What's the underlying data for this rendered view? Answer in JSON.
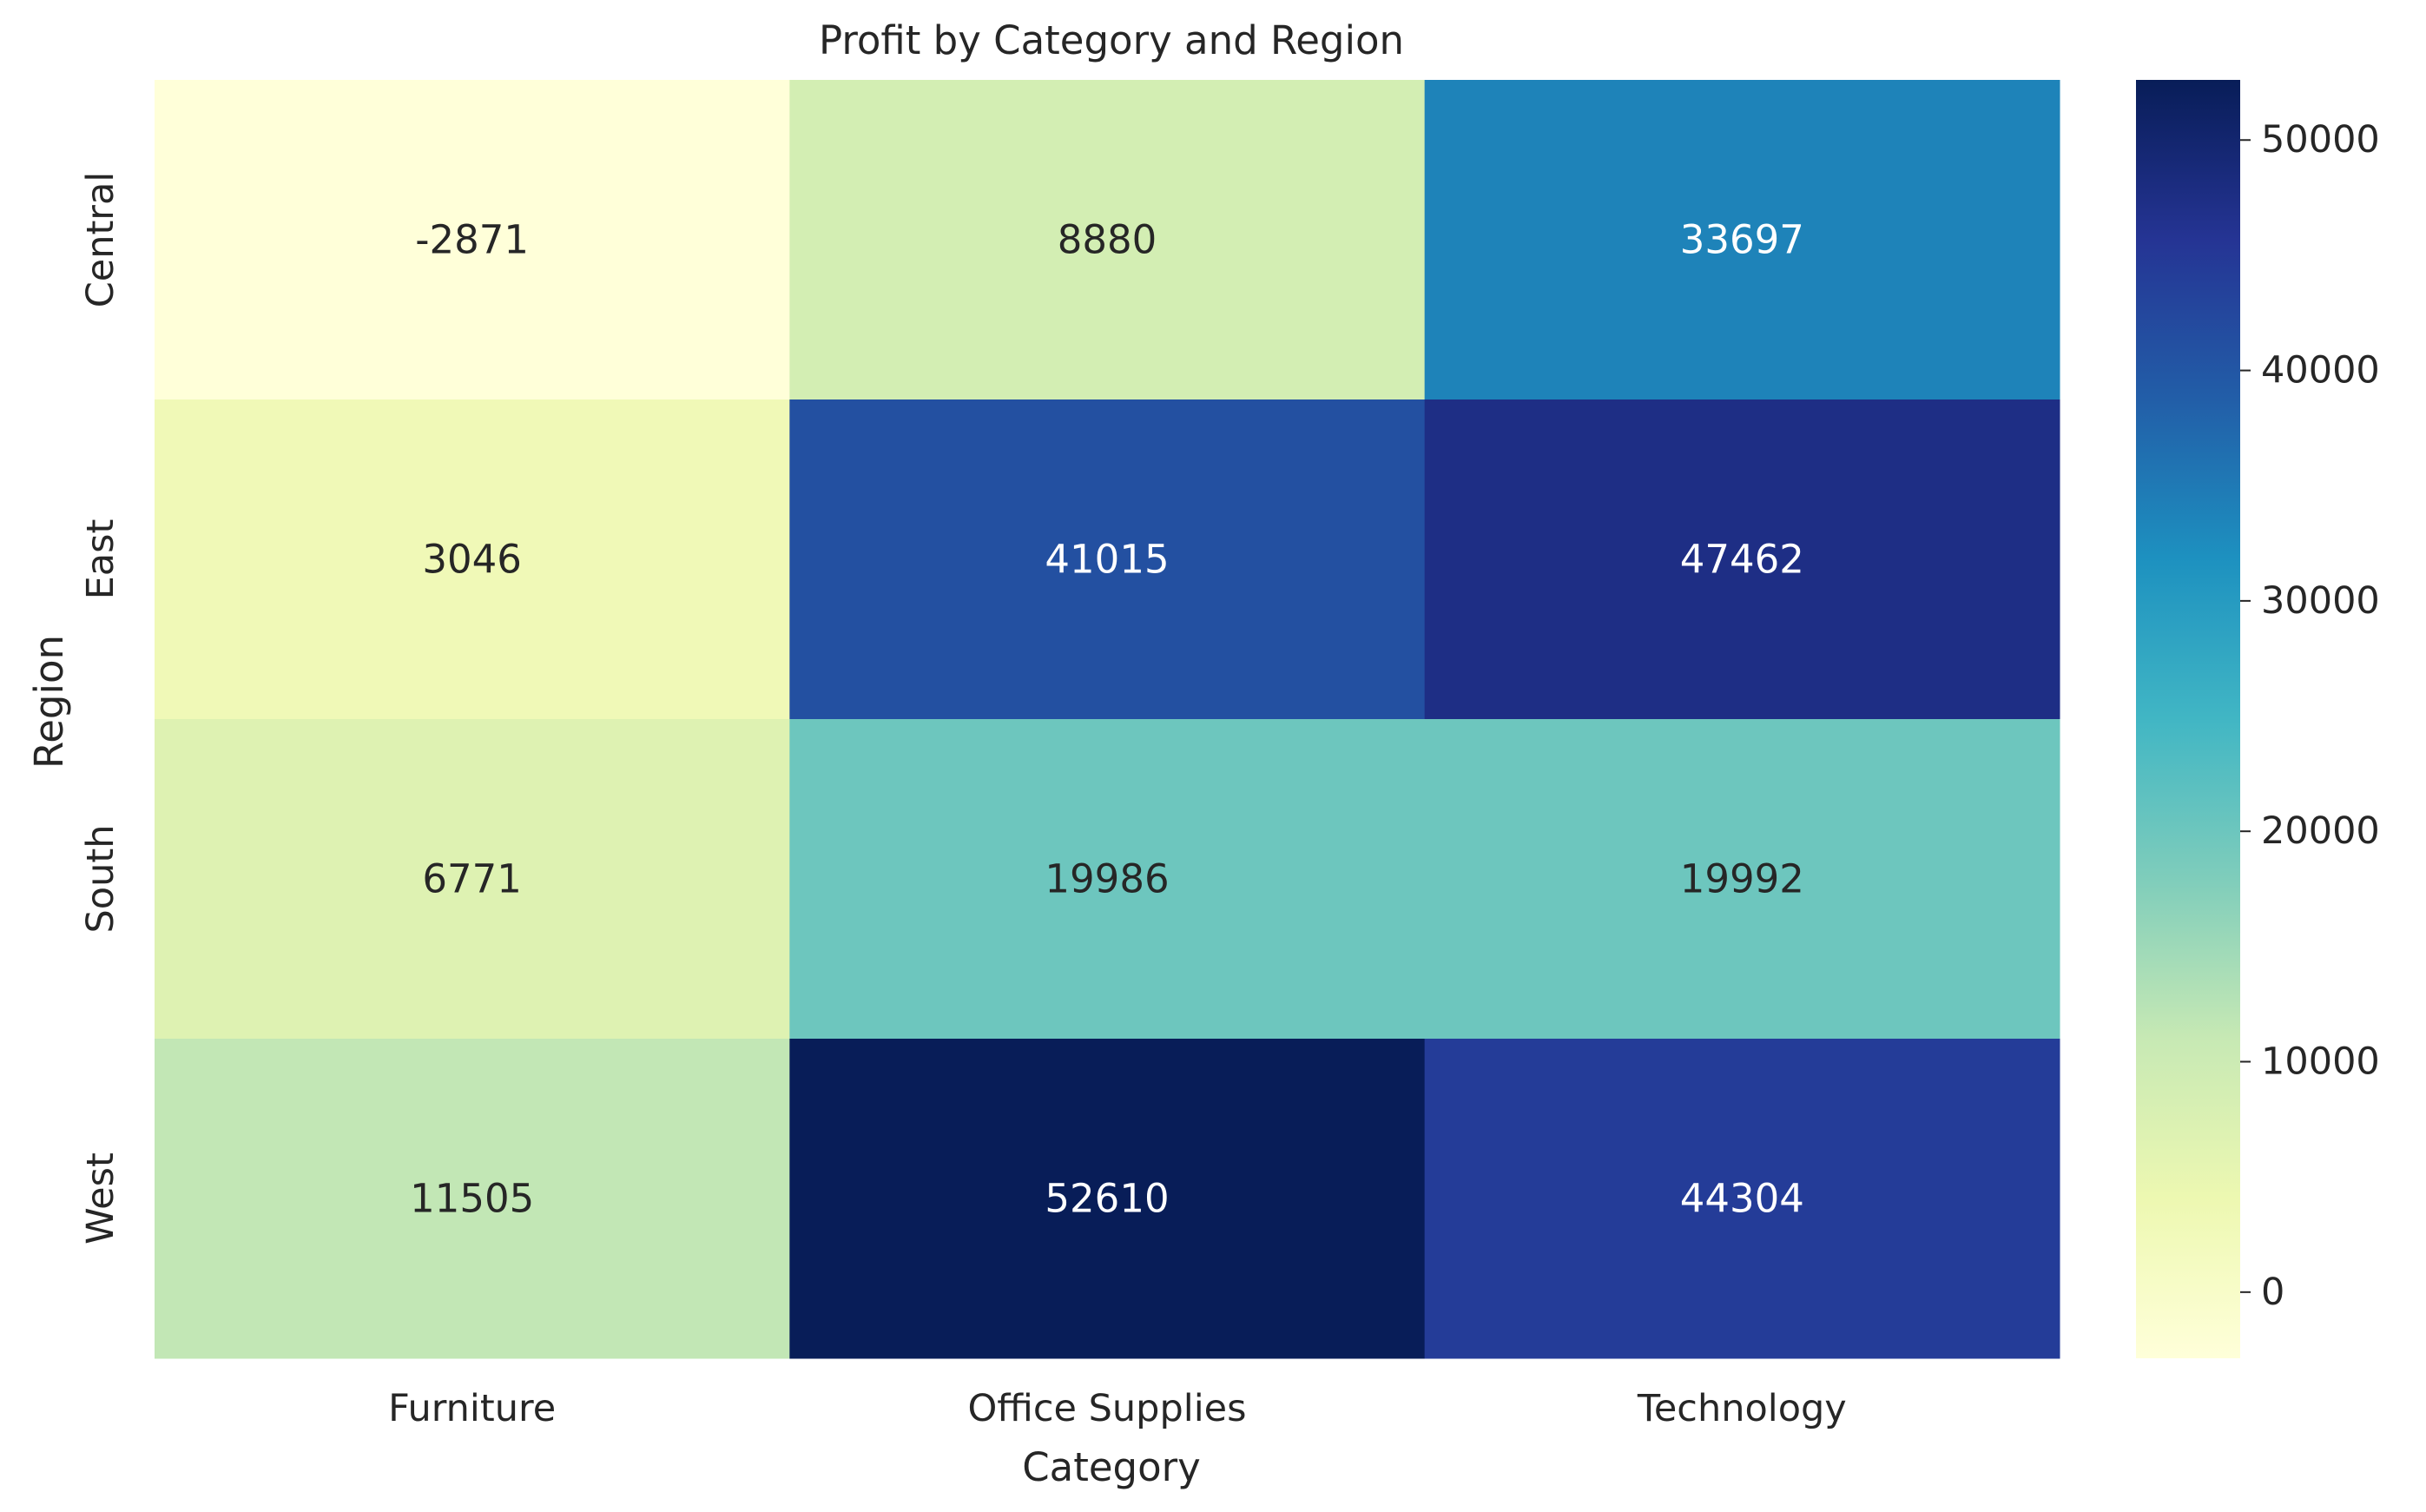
{
  "chart_data": {
    "type": "heatmap",
    "title": "Profit by Category and Region",
    "xlabel": "Category",
    "ylabel": "Region",
    "x_categories": [
      "Furniture",
      "Office Supplies",
      "Technology"
    ],
    "y_categories": [
      "Central",
      "East",
      "South",
      "West"
    ],
    "values": [
      [
        -2871,
        8880,
        33697
      ],
      [
        3046,
        41015,
        47462
      ],
      [
        6771,
        19986,
        19992
      ],
      [
        11505,
        52610,
        44304
      ]
    ],
    "colormap": "YlGnBu",
    "color_range": [
      -2871,
      52610
    ],
    "colorbar_ticks": [
      0,
      10000,
      20000,
      30000,
      40000,
      50000
    ],
    "grid": false
  }
}
